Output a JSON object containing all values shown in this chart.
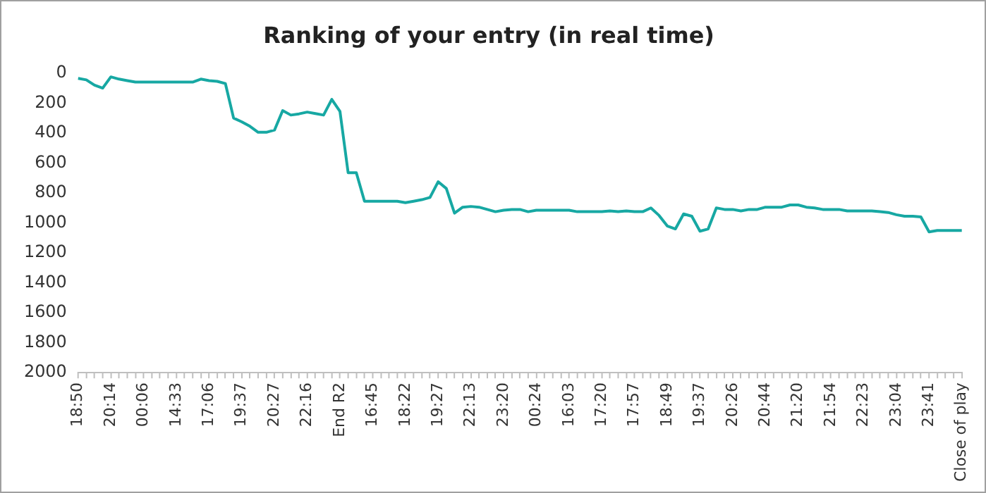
{
  "chart_data": {
    "type": "line",
    "title": "Ranking of your entry (in real time)",
    "categories": [
      "18:50",
      null,
      null,
      null,
      "20:14",
      null,
      null,
      null,
      "00:06",
      null,
      null,
      null,
      "14:33",
      null,
      null,
      null,
      "17:06",
      null,
      null,
      null,
      "19:37",
      null,
      null,
      null,
      "20:27",
      null,
      null,
      null,
      "22:16",
      null,
      null,
      null,
      "End R2",
      null,
      null,
      null,
      "16:45",
      null,
      null,
      null,
      "18:22",
      null,
      null,
      null,
      "19:27",
      null,
      null,
      null,
      "22:13",
      null,
      null,
      null,
      "23:20",
      null,
      null,
      null,
      "00:24",
      null,
      null,
      null,
      "16:03",
      null,
      null,
      null,
      "17:20",
      null,
      null,
      null,
      "17:57",
      null,
      null,
      null,
      "18:49",
      null,
      null,
      null,
      "19:37",
      null,
      null,
      null,
      "20:26",
      null,
      null,
      null,
      "20:44",
      null,
      null,
      null,
      "21:20",
      null,
      null,
      null,
      "21:54",
      null,
      null,
      null,
      "22:23",
      null,
      null,
      null,
      "23:04",
      null,
      null,
      null,
      "23:41",
      null,
      null,
      null,
      "Close of play"
    ],
    "series": [
      {
        "color": "#17a8a3",
        "values": [
          35,
          45,
          80,
          100,
          25,
          40,
          50,
          60,
          60,
          60,
          60,
          60,
          60,
          60,
          60,
          40,
          50,
          55,
          70,
          300,
          325,
          355,
          395,
          395,
          380,
          250,
          280,
          272,
          260,
          270,
          280,
          175,
          255,
          665,
          665,
          855,
          855,
          855,
          855,
          855,
          865,
          855,
          845,
          830,
          725,
          770,
          935,
          895,
          890,
          895,
          910,
          925,
          915,
          910,
          910,
          925,
          915,
          915,
          915,
          915,
          915,
          925,
          925,
          925,
          925,
          920,
          925,
          920,
          925,
          925,
          900,
          950,
          1020,
          1040,
          940,
          955,
          1055,
          1040,
          900,
          910,
          910,
          920,
          910,
          910,
          895,
          895,
          895,
          880,
          880,
          895,
          900,
          910,
          910,
          910,
          920,
          920,
          920,
          920,
          925,
          930,
          945,
          955,
          955,
          960,
          1060,
          1050,
          1050,
          1050,
          1050
        ]
      }
    ],
    "ylim": [
      2000,
      0
    ],
    "yticks": [
      0,
      200,
      400,
      600,
      800,
      1000,
      1200,
      1400,
      1600,
      1800,
      2000
    ],
    "grid": false,
    "legend": false,
    "marker": "none",
    "line_style": "solid"
  }
}
